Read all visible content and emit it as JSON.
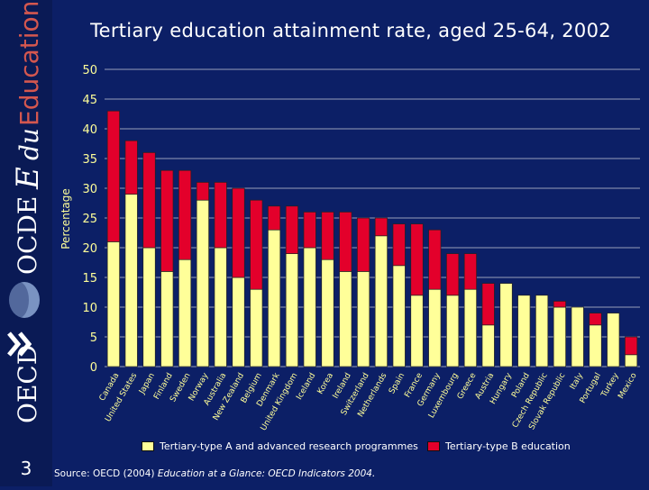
{
  "slide_number": "3",
  "branding": {
    "logo_oecd": "OECD",
    "logo_ocde": "OCDE",
    "logo_education": "Education"
  },
  "source": {
    "prefix": "Source: OECD (2004) ",
    "title": "Education at a Glance: OECD Indicators 2004."
  },
  "colors": {
    "background": "#0c1f66",
    "series_a": "#ffff99",
    "series_b": "#e3002b",
    "axis_text": "#ffff99"
  },
  "chart_data": {
    "type": "bar",
    "stacked": true,
    "title": "Tertiary education attainment rate, aged 25-64, 2002",
    "ylabel": "Percentage",
    "xlabel": "",
    "ylim": [
      0,
      50
    ],
    "yticks": [
      0,
      5,
      10,
      15,
      20,
      25,
      30,
      35,
      40,
      45,
      50
    ],
    "grid": true,
    "legend": "bottom",
    "categories": [
      "Canada",
      "United States",
      "Japan",
      "Finland",
      "Sweden",
      "Norway",
      "Australia",
      "New Zealand",
      "Belgium",
      "Denmark",
      "United Kingdom",
      "Iceland",
      "Korea",
      "Ireland",
      "Switzerland",
      "Netherlands",
      "Spain",
      "France",
      "Germany",
      "Luxembourg",
      "Greece",
      "Austria",
      "Hungary",
      "Poland",
      "Czech Republic",
      "Slovak Republic",
      "Italy",
      "Portugal",
      "Turkey",
      "Mexico"
    ],
    "series": [
      {
        "name": "Tertiary-type A and advanced research programmes",
        "values": [
          21,
          29,
          20,
          16,
          18,
          28,
          20,
          15,
          13,
          23,
          19,
          20,
          18,
          16,
          16,
          22,
          17,
          12,
          13,
          12,
          13,
          7,
          14,
          12,
          12,
          10,
          10,
          7,
          9,
          2
        ]
      },
      {
        "name": "Tertiary-type B education",
        "values": [
          22,
          9,
          16,
          17,
          15,
          3,
          11,
          15,
          15,
          4,
          8,
          6,
          8,
          10,
          9,
          3,
          7,
          12,
          10,
          7,
          6,
          7,
          0,
          0,
          0,
          1,
          0,
          2,
          0,
          3
        ]
      }
    ]
  }
}
